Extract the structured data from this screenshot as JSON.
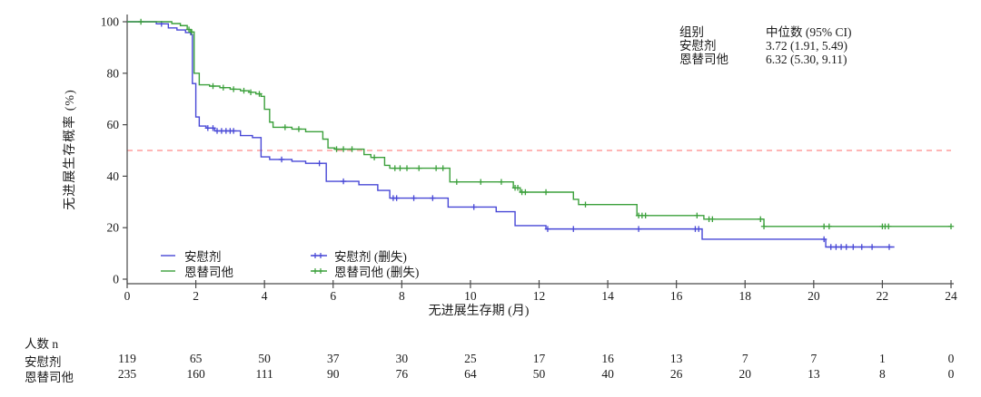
{
  "colors": {
    "placebo": "#4747d6",
    "treatment": "#3ba03b",
    "median_line": "#ffb5b5",
    "axis": "#4a4a4a",
    "text": "#1a1a1a"
  },
  "y_axis": {
    "title": "无进展生存概率 (%)",
    "ticks": [
      0,
      20,
      40,
      60,
      80,
      100
    ]
  },
  "x_axis": {
    "title": "无进展生存期 (月)",
    "ticks": [
      0,
      2,
      4,
      6,
      8,
      10,
      12,
      14,
      16,
      18,
      20,
      22,
      24
    ]
  },
  "stats": {
    "header_group": "组别",
    "header_median": "中位数 (95% CI)",
    "rows": [
      {
        "group": "安慰剂",
        "median": "3.72 (1.91, 5.49)"
      },
      {
        "group": "恩替司他",
        "median": "6.32 (5.30, 9.11)"
      }
    ]
  },
  "legend": [
    {
      "label": "安慰剂",
      "type": "line",
      "color_key": "placebo"
    },
    {
      "label": "安慰剂 (删失)",
      "type": "censor",
      "color_key": "placebo"
    },
    {
      "label": "恩替司他",
      "type": "line",
      "color_key": "treatment"
    },
    {
      "label": "恩替司他 (删失)",
      "type": "censor",
      "color_key": "treatment"
    }
  ],
  "risk_table": {
    "title": "人数 n",
    "months": [
      0,
      2,
      4,
      6,
      8,
      10,
      12,
      14,
      16,
      18,
      20,
      22,
      24
    ],
    "rows": [
      {
        "label": "安慰剂",
        "values": [
          119,
          65,
          50,
          37,
          30,
          25,
          17,
          16,
          13,
          7,
          7,
          1,
          0
        ]
      },
      {
        "label": "恩替司他",
        "values": [
          235,
          160,
          111,
          90,
          76,
          64,
          50,
          40,
          26,
          20,
          13,
          8,
          0
        ]
      }
    ]
  },
  "chart_data": {
    "type": "line",
    "subtype": "kaplan-meier-step",
    "title": "",
    "xlabel": "无进展生存期 (月)",
    "ylabel": "无进展生存概率 (%)",
    "xlim": [
      0,
      24
    ],
    "ylim": [
      0,
      100
    ],
    "grid": false,
    "legend_position": "inside-bottom-left",
    "median_reference_y": 50,
    "series": [
      {
        "name": "安慰剂",
        "color_key": "placebo",
        "median": 3.72,
        "ci95": [
          1.91,
          5.49
        ],
        "end_x": 22.35,
        "steps": [
          [
            0,
            100
          ],
          [
            0.85,
            99.2
          ],
          [
            1.2,
            97.6
          ],
          [
            1.45,
            96.8
          ],
          [
            1.7,
            95.8
          ],
          [
            1.85,
            95
          ],
          [
            1.9,
            76
          ],
          [
            2.0,
            63
          ],
          [
            2.1,
            59.5
          ],
          [
            2.3,
            58.7
          ],
          [
            2.55,
            57.6
          ],
          [
            3.3,
            55.8
          ],
          [
            3.65,
            55
          ],
          [
            3.9,
            47.5
          ],
          [
            4.15,
            46.5
          ],
          [
            4.8,
            45.8
          ],
          [
            5.2,
            45
          ],
          [
            5.8,
            38
          ],
          [
            6.75,
            36.7
          ],
          [
            7.3,
            34.5
          ],
          [
            7.65,
            31.5
          ],
          [
            9.35,
            28
          ],
          [
            10.75,
            26.2
          ],
          [
            11.3,
            20.8
          ],
          [
            12.2,
            19.5
          ],
          [
            16.75,
            15.5
          ],
          [
            20.35,
            12.5
          ]
        ],
        "censor_x": [
          1.0,
          2.35,
          2.5,
          2.62,
          2.75,
          2.88,
          3.0,
          3.1,
          4.5,
          5.6,
          6.3,
          7.75,
          7.85,
          8.35,
          8.9,
          10.1,
          12.25,
          13.0,
          14.9,
          16.55,
          16.65,
          20.3,
          20.5,
          20.65,
          20.8,
          20.95,
          21.15,
          21.4,
          21.7,
          22.2
        ]
      },
      {
        "name": "恩替司他",
        "color_key": "treatment",
        "median": 6.32,
        "ci95": [
          5.3,
          9.11
        ],
        "end_x": 24,
        "steps": [
          [
            0,
            100
          ],
          [
            1.3,
            99.3
          ],
          [
            1.55,
            98.5
          ],
          [
            1.75,
            97
          ],
          [
            1.85,
            96
          ],
          [
            1.95,
            80
          ],
          [
            2.1,
            75.5
          ],
          [
            2.4,
            75
          ],
          [
            2.7,
            74.4
          ],
          [
            3.0,
            73.8
          ],
          [
            3.3,
            73.2
          ],
          [
            3.55,
            72.6
          ],
          [
            3.75,
            72
          ],
          [
            3.9,
            71
          ],
          [
            4.0,
            66
          ],
          [
            4.15,
            61
          ],
          [
            4.25,
            59
          ],
          [
            4.8,
            58.3
          ],
          [
            5.2,
            57.3
          ],
          [
            5.7,
            54.4
          ],
          [
            5.85,
            51
          ],
          [
            6.05,
            50.5
          ],
          [
            6.9,
            48.4
          ],
          [
            7.1,
            47.3
          ],
          [
            7.5,
            44.2
          ],
          [
            7.65,
            43.1
          ],
          [
            9.4,
            37.8
          ],
          [
            11.25,
            35.5
          ],
          [
            11.45,
            33.8
          ],
          [
            13.0,
            31
          ],
          [
            13.15,
            29
          ],
          [
            14.85,
            24.7
          ],
          [
            16.8,
            23.3
          ],
          [
            18.55,
            20.5
          ]
        ],
        "censor_x": [
          0.4,
          1.8,
          1.88,
          2.5,
          2.8,
          3.1,
          3.4,
          3.6,
          3.85,
          4.6,
          5.0,
          6.1,
          6.3,
          6.55,
          7.2,
          7.8,
          7.95,
          8.15,
          8.5,
          9.0,
          9.2,
          9.6,
          10.3,
          10.9,
          11.3,
          11.38,
          11.5,
          11.6,
          12.2,
          13.35,
          14.9,
          15.0,
          15.1,
          16.6,
          16.95,
          17.05,
          18.45,
          18.55,
          20.3,
          20.45,
          22.0,
          22.08,
          22.18,
          24.0
        ]
      }
    ]
  }
}
